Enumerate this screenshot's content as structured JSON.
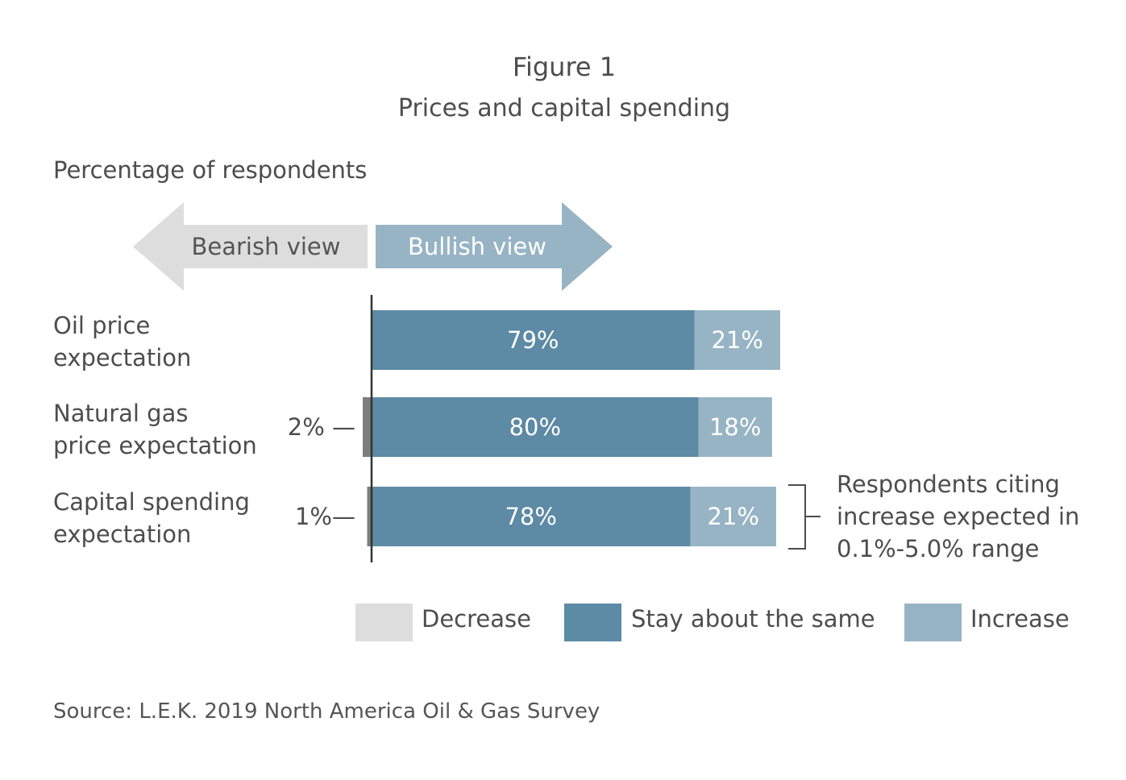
{
  "chart_data": {
    "type": "bar",
    "orientation": "horizontal",
    "stacked": true,
    "title": "Figure 1",
    "subtitle": "Prices and capital spending",
    "ylabel": "Percentage of respondents",
    "categories": [
      [
        "Oil price",
        "expectation"
      ],
      [
        "Natural gas",
        "price expectation"
      ],
      [
        "Capital spending",
        "expectation"
      ]
    ],
    "series": [
      {
        "name": "Decrease",
        "values": [
          0,
          2,
          1
        ],
        "color": "#dddddd",
        "display": [
          "",
          "2% —",
          "1%—"
        ]
      },
      {
        "name": "Stay about the same",
        "values": [
          79,
          80,
          78
        ],
        "color": "#5d8aa5",
        "display": [
          "79%",
          "80%",
          "78%"
        ]
      },
      {
        "name": "Increase",
        "values": [
          21,
          18,
          21
        ],
        "color": "#97b4c5",
        "display": [
          "21%",
          "18%",
          "21%"
        ]
      }
    ],
    "xlim": [
      0,
      100
    ],
    "arrows": {
      "left": "Bearish view",
      "right": "Bullish view"
    },
    "annotation": [
      "Respondents citing",
      "increase expected in",
      "0.1%-5.0% range"
    ],
    "source": "Source: L.E.K. 2019 North America Oil & Gas Survey",
    "grid": false,
    "legend": "bottom"
  }
}
